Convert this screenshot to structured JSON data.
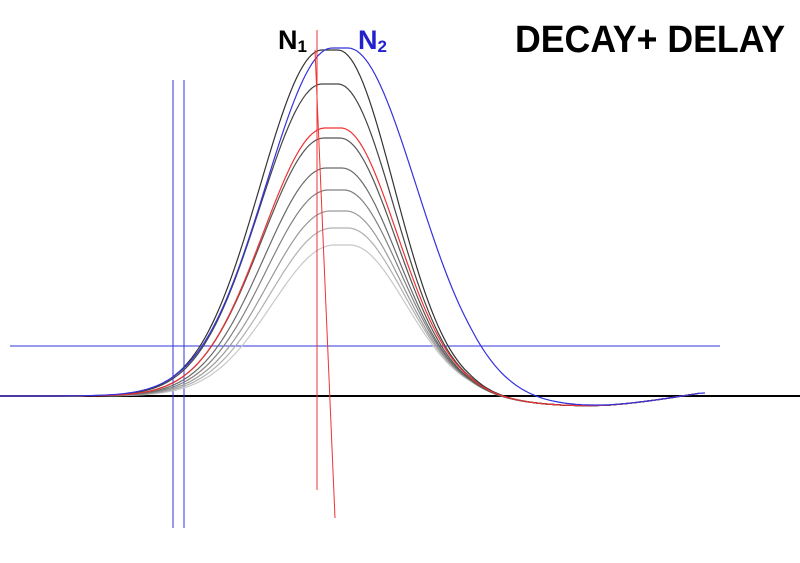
{
  "title": "DECAY+ DELAY",
  "labels": {
    "n1_main": "N",
    "n1_sub": "1",
    "n2_main": "N",
    "n2_sub": "2"
  },
  "colors": {
    "background": "#ffffff",
    "baseline": "#000000",
    "guide_lines": "#3333dd",
    "red_markers": "#ee3333",
    "n1_label": "#000000",
    "n2_label": "#2222cc",
    "title": "#000000"
  }
}
